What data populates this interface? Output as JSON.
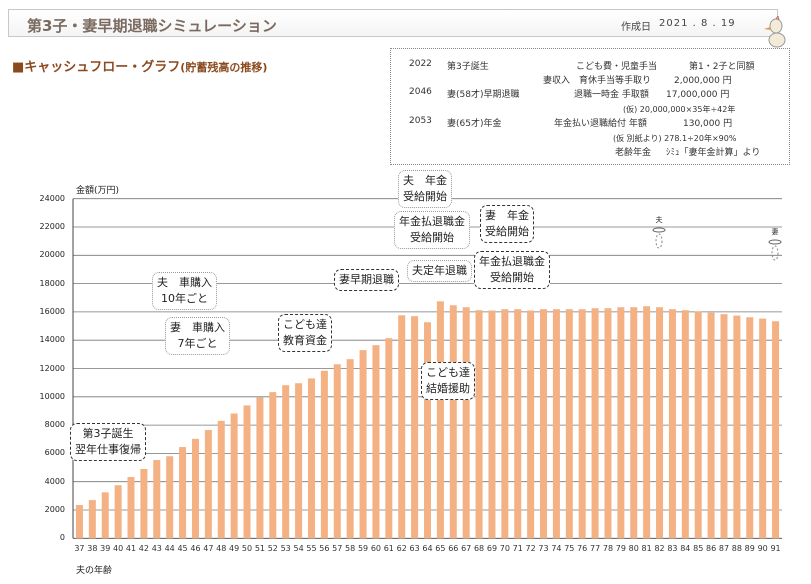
{
  "header": {
    "title": "第3子・妻早期退職シミュレーション",
    "date_label": "作成日",
    "date": "2021 . 8 . 19"
  },
  "section_title": "■キャッシュフロー・グラフ",
  "section_subtitle": "(貯蓄残高の推移)",
  "info": {
    "r1": {
      "year": "2022",
      "event": "第3子誕生",
      "item": "こども費・児童手当",
      "value": "第1・2子と同額"
    },
    "r1b": {
      "item": "妻収入　育休手当等手取り",
      "value": "2,000,000 円"
    },
    "r2": {
      "year": "2046",
      "event": "妻(58才)早期退職",
      "item": "退職一時金 手取額",
      "value": "17,000,000 円"
    },
    "r2b": {
      "note": "(仮) 20,000,000×35年÷42年"
    },
    "r3": {
      "year": "2053",
      "event": "妻(65才)年金",
      "item": "年金払い退職給付 年額",
      "value": "130,000 円"
    },
    "r3b": {
      "note": "(仮 別紙より) 278.1÷20年×90%"
    },
    "r3c": {
      "item": "老齢年金",
      "value": "ｼﾐｭ「妻年金計算」より"
    }
  },
  "callouts": [
    {
      "text": "第3子誕生\n翌年仕事復帰"
    },
    {
      "text": "夫　車購入\n10年ごと"
    },
    {
      "text": "妻　車購入\n7年ごと"
    },
    {
      "text": "こども達\n教育資金"
    },
    {
      "text": "妻早期退職"
    },
    {
      "text": "夫　年金\n受給開始"
    },
    {
      "text": "年金払退職金\n受給開始"
    },
    {
      "text": "夫定年退職"
    },
    {
      "text": "妻　年金\n受給開始"
    },
    {
      "text": "年金払退職金\n受給開始"
    },
    {
      "text": "こども達\n結婚援助"
    }
  ],
  "markers": {
    "husband": "夫",
    "wife": "妻"
  },
  "colors": {
    "bar": "#f4b183",
    "title": "#8b4a1e"
  },
  "chart_data": {
    "type": "bar",
    "ylabel": "金額(万円)",
    "xlabel": "夫の年齢",
    "ylim": [
      0,
      24000
    ],
    "yticks": [
      0,
      2000,
      4000,
      6000,
      8000,
      10000,
      12000,
      14000,
      16000,
      18000,
      20000,
      22000,
      24000
    ],
    "grid": true,
    "categories": [
      "37",
      "38",
      "39",
      "40",
      "41",
      "42",
      "43",
      "44",
      "45",
      "46",
      "47",
      "48",
      "49",
      "50",
      "51",
      "52",
      "53",
      "54",
      "55",
      "56",
      "57",
      "58",
      "59",
      "60",
      "61",
      "62",
      "63",
      "64",
      "65",
      "66",
      "67",
      "68",
      "69",
      "70",
      "71",
      "72",
      "73",
      "74",
      "75",
      "76",
      "77",
      "78",
      "79",
      "80",
      "81",
      "82",
      "83",
      "84",
      "85",
      "86",
      "87",
      "88",
      "89",
      "90",
      "91"
    ],
    "values": [
      2350,
      2700,
      3250,
      3750,
      4330,
      4900,
      5530,
      5800,
      6450,
      7030,
      7650,
      8300,
      8820,
      9390,
      9950,
      10330,
      10820,
      10960,
      11300,
      11840,
      12300,
      12660,
      13300,
      13650,
      14140,
      15760,
      15700,
      15270,
      16750,
      16470,
      16330,
      16120,
      16100,
      16190,
      16190,
      16100,
      16190,
      16190,
      16190,
      16190,
      16260,
      16260,
      16330,
      16330,
      16400,
      16330,
      16190,
      16120,
      16050,
      15950,
      15840,
      15740,
      15620,
      15530,
      15340
    ]
  }
}
